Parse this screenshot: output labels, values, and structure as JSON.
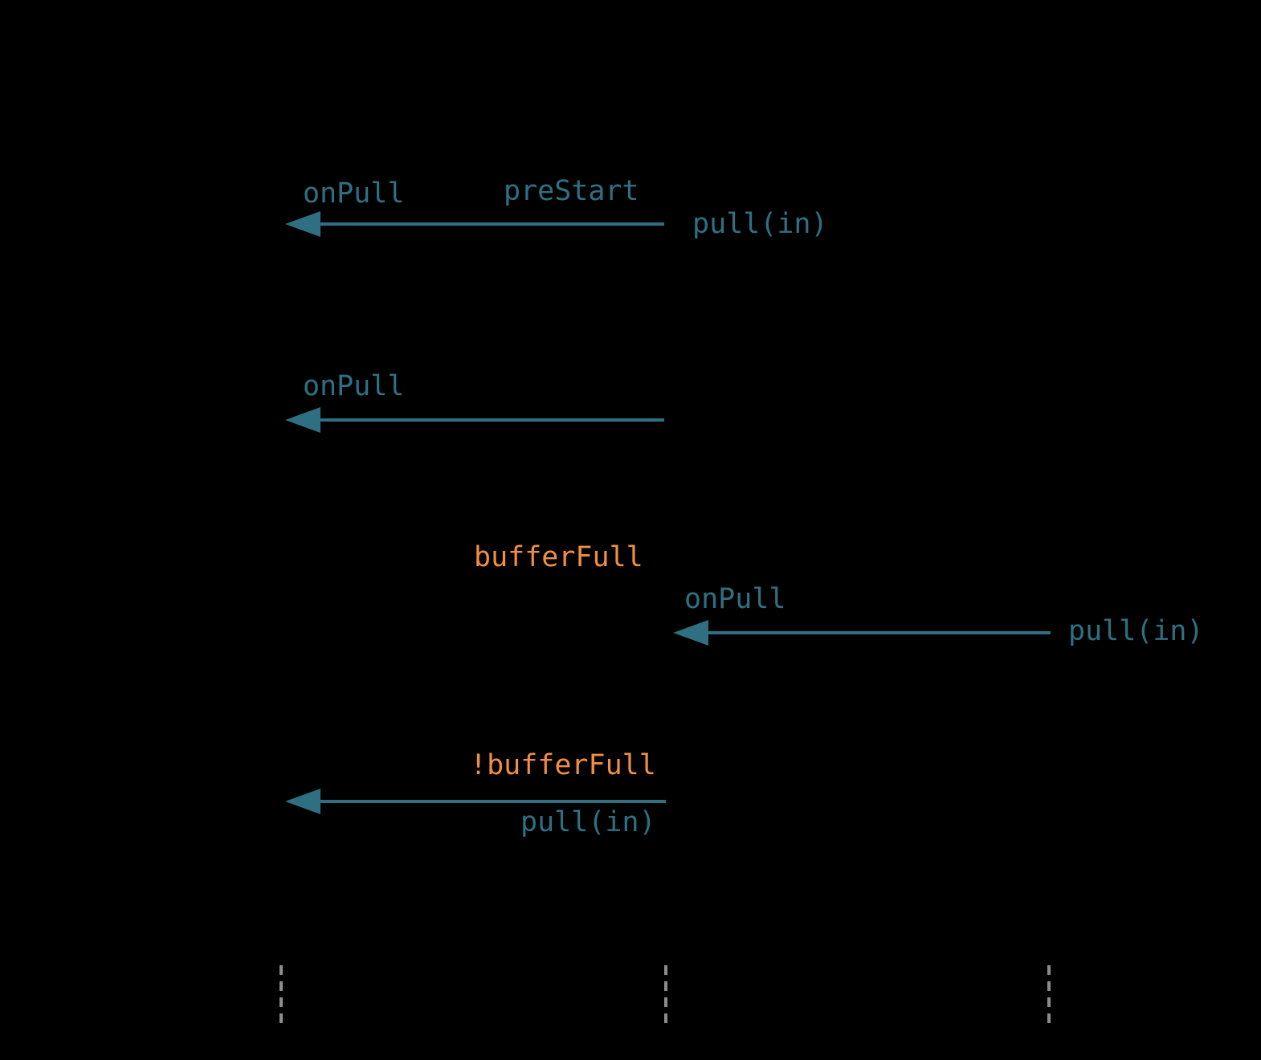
{
  "colors": {
    "teal": "#2E7082",
    "orange": "#EF8E44",
    "lifeline": "#8C8C8C",
    "bg": "#000000"
  },
  "diagram": {
    "type": "sequence-diagram-fragment",
    "messages": [
      {
        "handler": "onPull",
        "guard": "preStart",
        "call": "pull(in)",
        "direction": "left"
      },
      {
        "handler": "onPull",
        "direction": "left"
      },
      {
        "condition": "bufferFull",
        "handler": "onPull",
        "call": "pull(in)",
        "direction": "left"
      },
      {
        "condition": "!bufferFull",
        "call": "pull(in)",
        "direction": "left"
      }
    ],
    "lifelines": {
      "count": 3,
      "style": "dashed-stub"
    }
  }
}
